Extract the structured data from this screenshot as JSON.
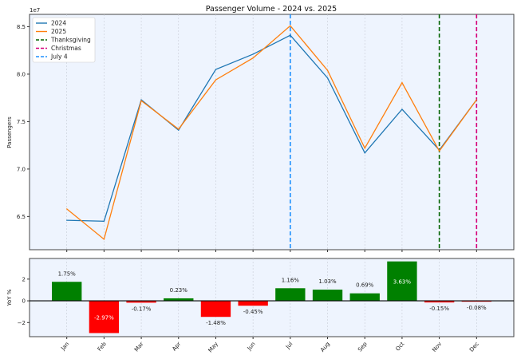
{
  "chart_data": [
    {
      "type": "line",
      "title": "Passenger Volume - 2024 vs. 2025",
      "xlabel": "",
      "ylabel": "Passengers",
      "y_offset_label": "1e7",
      "categories": [
        "Jan",
        "Feb",
        "Mar",
        "Apr",
        "May",
        "Jun",
        "Jul",
        "Aug",
        "Sep",
        "Oct",
        "Nov",
        "Dec"
      ],
      "ylim": [
        6.15,
        8.63
      ],
      "yticks": [
        6.5,
        7.0,
        7.5,
        8.0,
        8.5
      ],
      "ytick_labels": [
        "6.5",
        "7.0",
        "7.5",
        "8.0",
        "8.5"
      ],
      "grid": "vertical dotted",
      "legend_position": "top-left",
      "series": [
        {
          "name": "2024",
          "color": "#1f77b4",
          "values": [
            6.46,
            6.45,
            7.73,
            7.41,
            8.05,
            8.21,
            8.41,
            7.96,
            7.17,
            7.63,
            7.2,
            7.73
          ]
        },
        {
          "name": "2025",
          "color": "#ff7f0e",
          "values": [
            6.58,
            6.26,
            7.72,
            7.42,
            7.94,
            8.17,
            8.51,
            8.04,
            7.22,
            7.91,
            7.19,
            7.73
          ]
        }
      ],
      "vlines": [
        {
          "name": "Thanksgiving",
          "color": "#006400",
          "category": "Nov"
        },
        {
          "name": "Christmas",
          "color": "#d6007a",
          "category": "Dec"
        },
        {
          "name": "July 4",
          "color": "#1e90ff",
          "category": "Jul"
        }
      ]
    },
    {
      "type": "bar",
      "ylabel": "YoY %",
      "categories": [
        "Jan",
        "Feb",
        "Mar",
        "Apr",
        "May",
        "Jun",
        "Jul",
        "Aug",
        "Sep",
        "Oct",
        "Nov",
        "Dec"
      ],
      "values": [
        1.75,
        -2.97,
        -0.17,
        0.23,
        -1.48,
        -0.45,
        1.16,
        1.03,
        0.69,
        3.63,
        -0.15,
        -0.08
      ],
      "labels": [
        "1.75%",
        "-2.97%",
        "-0.17%",
        "0.23%",
        "-1.48%",
        "-0.45%",
        "1.16%",
        "1.03%",
        "0.69%",
        "3.63%",
        "-0.15%",
        "-0.08%"
      ],
      "ylim": [
        -3.3,
        3.9
      ],
      "yticks": [
        -2,
        0,
        2
      ],
      "ytick_labels": [
        "−2",
        "0",
        "2"
      ],
      "positive_color": "#008000",
      "negative_color": "#ff0000"
    }
  ]
}
